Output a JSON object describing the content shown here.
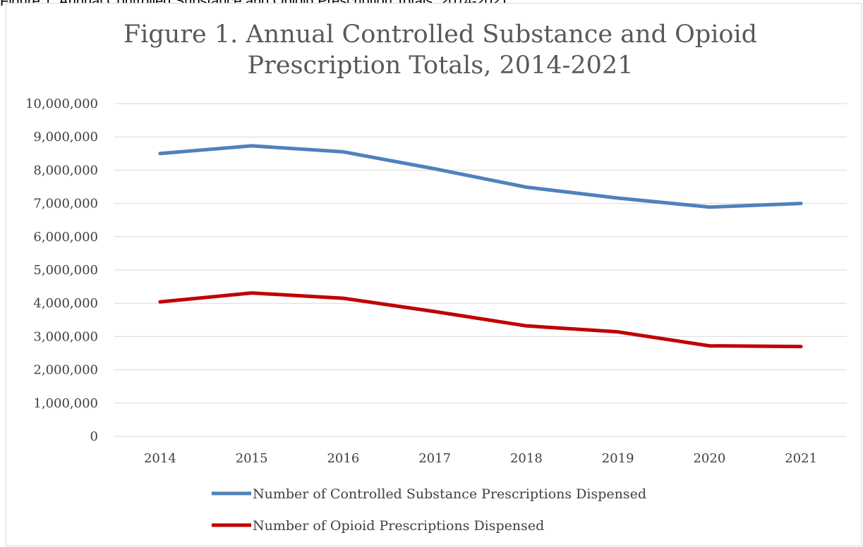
{
  "caption": "Figure 1. Annual Controlled Substance and Opioid Prescription Totals, 2014-2021",
  "chart_data": {
    "type": "line",
    "title_lines": [
      "Figure 1. Annual Controlled Substance and Opioid",
      "Prescription Totals, 2014-2021"
    ],
    "categories": [
      "2014",
      "2015",
      "2016",
      "2017",
      "2018",
      "2019",
      "2020",
      "2021"
    ],
    "series": [
      {
        "name": "Number of Controlled Substance Prescriptions Dispensed",
        "color": "#4f81bd",
        "values": [
          8500000,
          8730000,
          8550000,
          8040000,
          7490000,
          7160000,
          6890000,
          7000000
        ]
      },
      {
        "name": "Number of Opioid Prescriptions Dispensed",
        "color": "#c00000",
        "values": [
          4040000,
          4310000,
          4150000,
          3750000,
          3320000,
          3140000,
          2720000,
          2700000
        ]
      }
    ],
    "ylim": [
      0,
      10000000
    ],
    "yticks": [
      "0",
      "1,000,000",
      "2,000,000",
      "3,000,000",
      "4,000,000",
      "5,000,000",
      "6,000,000",
      "7,000,000",
      "8,000,000",
      "9,000,000",
      "10,000,000"
    ],
    "grid": true,
    "legend_position": "bottom",
    "gridline_color": "#d9d9d9"
  }
}
